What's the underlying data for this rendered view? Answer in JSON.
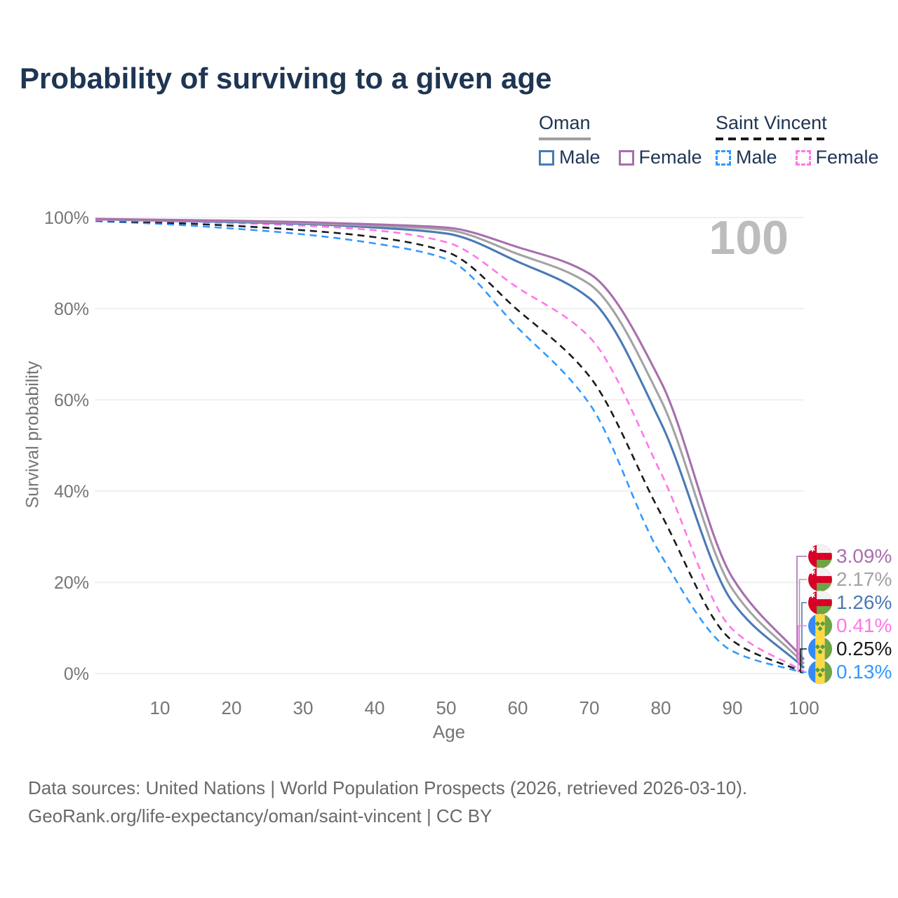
{
  "title": "Probability of surviving to a given age",
  "watermark": "100",
  "legend": {
    "groups": [
      {
        "label": "Oman",
        "line_style": "solid",
        "rule_color": "#9e9e9e",
        "items": [
          {
            "label": "Male",
            "color": "#4a7ab5",
            "dash": false
          },
          {
            "label": "Female",
            "color": "#a86fae",
            "dash": false
          }
        ]
      },
      {
        "label": "Saint Vincent",
        "line_style": "dashed",
        "rule_color": "#1a1a1a",
        "items": [
          {
            "label": "Male",
            "color": "#3399ff",
            "dash": true
          },
          {
            "label": "Female",
            "color": "#ff77e8",
            "dash": true
          }
        ]
      }
    ]
  },
  "axes": {
    "x": {
      "label": "Age",
      "ticks": [
        10,
        20,
        30,
        40,
        50,
        60,
        70,
        80,
        90,
        100
      ],
      "range": [
        0,
        100
      ]
    },
    "y": {
      "label": "Survival probability",
      "ticks": [
        0,
        20,
        40,
        60,
        80,
        100
      ],
      "tick_suffix": "%",
      "range": [
        0,
        100
      ]
    }
  },
  "chart_data": {
    "type": "line",
    "x": [
      1,
      10,
      20,
      30,
      40,
      50,
      60,
      70,
      80,
      90,
      100
    ],
    "grid": "horizontal-only",
    "legend_position": "top-right",
    "series": [
      {
        "name": "Oman Female",
        "country": "oman",
        "color": "#a86fae",
        "dash": false,
        "values": [
          99.7,
          99.5,
          99.3,
          99.0,
          98.5,
          97.8,
          93.5,
          87.7,
          64.0,
          21.0,
          3.09
        ],
        "end_label": "3.09%"
      },
      {
        "name": "Oman Both sexes",
        "country": "oman",
        "color": "#a3a3a3",
        "dash": false,
        "values": [
          99.6,
          99.4,
          99.2,
          98.8,
          98.2,
          97.3,
          92.0,
          85.4,
          60.0,
          18.5,
          2.17
        ],
        "end_label": "2.17%"
      },
      {
        "name": "Oman Male",
        "country": "oman",
        "color": "#4a7ab5",
        "dash": false,
        "values": [
          99.6,
          99.3,
          99.0,
          98.6,
          97.8,
          96.5,
          90.3,
          82.3,
          55.0,
          15.7,
          1.26
        ],
        "end_label": "1.26%"
      },
      {
        "name": "Saint Vincent Female",
        "country": "saint-vincent",
        "color": "#ff77e8",
        "dash": true,
        "values": [
          99.4,
          99.2,
          98.8,
          98.2,
          97.2,
          94.6,
          84.6,
          73.8,
          44.0,
          9.7,
          0.41
        ],
        "end_label": "0.41%"
      },
      {
        "name": "Saint Vincent Both sexes",
        "country": "saint-vincent",
        "color": "#1a1a1a",
        "dash": true,
        "values": [
          99.3,
          98.9,
          98.2,
          97.2,
          95.7,
          92.5,
          79.7,
          65.2,
          35.0,
          7.2,
          0.25
        ],
        "end_label": "0.25%"
      },
      {
        "name": "Saint Vincent Male",
        "country": "saint-vincent",
        "color": "#3399ff",
        "dash": true,
        "values": [
          99.2,
          98.6,
          97.6,
          96.3,
          94.3,
          90.9,
          75.8,
          59.2,
          26.0,
          4.9,
          0.13
        ],
        "end_label": "0.13%"
      }
    ]
  },
  "footer": {
    "line1": "Data sources: United Nations | World Population Prospects (2026, retrieved 2026-03-10).",
    "line2": "GeoRank.org/life-expectancy/oman/saint-vincent | CC BY"
  }
}
